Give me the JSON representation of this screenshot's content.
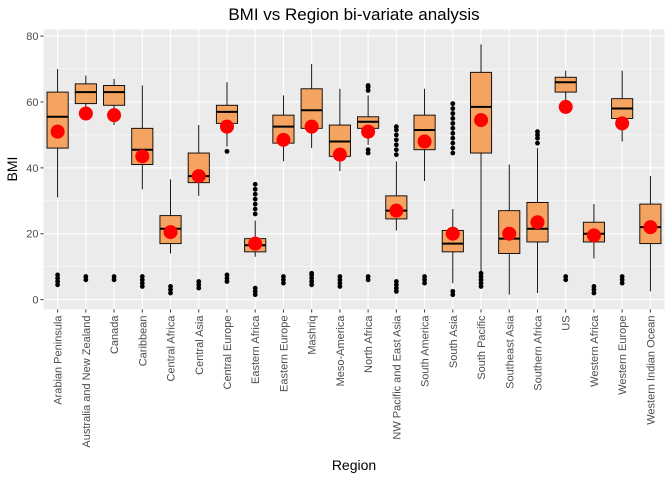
{
  "chart_data": {
    "type": "boxplot",
    "title": "BMI vs Region bi-variate analysis",
    "xlabel": "Region",
    "ylabel": "BMI",
    "ylim": [
      -3,
      82
    ],
    "yticks": [
      0,
      20,
      40,
      60,
      80
    ],
    "grid": true,
    "legend": "none",
    "box_fill": "#F4A460",
    "mean_color": "#FF0000",
    "panel_bg": "#EBEBEB",
    "grid_color": "#FFFFFF",
    "categories": [
      "Arabian Peninsula",
      "Australia and New Zealand",
      "Canada",
      "Caribbean",
      "Central Africa",
      "Central Asia",
      "Central Europe",
      "Eastern Africa",
      "Eastern Europe",
      "Mashriq",
      "Meso-America",
      "North Africa",
      "NW Pacific and East Asia",
      "South America",
      "South Asia",
      "South Pacific",
      "Southeast Asia",
      "Southern Africa",
      "US",
      "Western Africa",
      "Western Europe",
      "Western Indian Ocean"
    ],
    "boxes": [
      {
        "lw": 31,
        "q1": 46,
        "med": 55.5,
        "q3": 63,
        "uw": 70,
        "mean": 51,
        "outliers": [
          4.5,
          5.5,
          6.5,
          7.5
        ]
      },
      {
        "lw": 55,
        "q1": 59.5,
        "med": 63,
        "q3": 65.5,
        "uw": 68,
        "mean": 56.5,
        "outliers": [
          6,
          7
        ]
      },
      {
        "lw": 53,
        "q1": 59,
        "med": 63,
        "q3": 65,
        "uw": 67,
        "mean": 56,
        "outliers": [
          6,
          7
        ]
      },
      {
        "lw": 33.5,
        "q1": 41,
        "med": 45.5,
        "q3": 52,
        "uw": 65,
        "mean": 43.5,
        "outliers": [
          4,
          5,
          6,
          7
        ]
      },
      {
        "lw": 14,
        "q1": 17,
        "med": 21.5,
        "q3": 25.5,
        "uw": 36.5,
        "mean": 20.5,
        "outliers": [
          2,
          3,
          4
        ]
      },
      {
        "lw": 31.5,
        "q1": 35.5,
        "med": 37.5,
        "q3": 44.5,
        "uw": 53,
        "mean": 37.5,
        "outliers": [
          3.5,
          4.5,
          5.5
        ]
      },
      {
        "lw": 46.5,
        "q1": 53.5,
        "med": 57,
        "q3": 59,
        "uw": 66,
        "mean": 52.5,
        "outliers": [
          5.5,
          6.5,
          7.5,
          45
        ]
      },
      {
        "lw": 13,
        "q1": 14.5,
        "med": 16.5,
        "q3": 18.5,
        "uw": 24,
        "mean": 17,
        "outliers": [
          1.5,
          2.5,
          3.5,
          26,
          27.5,
          29,
          30.5,
          32,
          33.5,
          35
        ]
      },
      {
        "lw": 42,
        "q1": 47.5,
        "med": 52.5,
        "q3": 56,
        "uw": 62,
        "mean": 48.5,
        "outliers": [
          5,
          6,
          7
        ]
      },
      {
        "lw": 46,
        "q1": 52,
        "med": 57.5,
        "q3": 64,
        "uw": 71.5,
        "mean": 52.5,
        "outliers": [
          4.5,
          5.5,
          6.5,
          7.5,
          8
        ]
      },
      {
        "lw": 39,
        "q1": 43.5,
        "med": 48,
        "q3": 53,
        "uw": 64,
        "mean": 44,
        "outliers": [
          4,
          5,
          6,
          7
        ]
      },
      {
        "lw": 47,
        "q1": 52,
        "med": 54,
        "q3": 55.5,
        "uw": 62,
        "mean": 51,
        "outliers": [
          6,
          7,
          44.5,
          45.5,
          63.5,
          64.5,
          65
        ]
      },
      {
        "lw": 21,
        "q1": 24.5,
        "med": 27,
        "q3": 31.5,
        "uw": 42,
        "mean": 27,
        "outliers": [
          2.5,
          3.5,
          4.5,
          5.5,
          44,
          45.5,
          47,
          48.5,
          50,
          51.5,
          52.5
        ]
      },
      {
        "lw": 36,
        "q1": 45.5,
        "med": 51.5,
        "q3": 56,
        "uw": 64,
        "mean": 48,
        "outliers": [
          5,
          6,
          7
        ]
      },
      {
        "lw": 5,
        "q1": 14.5,
        "med": 17,
        "q3": 21,
        "uw": 27.5,
        "mean": 20,
        "outliers": [
          1.5,
          2.5,
          44.5,
          46,
          47.5,
          49,
          50.5,
          52,
          53.5,
          55,
          56.5,
          58,
          59.5
        ]
      },
      {
        "lw": 8.5,
        "q1": 44.5,
        "med": 58.5,
        "q3": 69,
        "uw": 77.5,
        "mean": 54.5,
        "outliers": [
          4,
          5,
          6,
          7,
          8
        ]
      },
      {
        "lw": 1.5,
        "q1": 14,
        "med": 18.5,
        "q3": 27,
        "uw": 41,
        "mean": 20,
        "outliers": []
      },
      {
        "lw": 2,
        "q1": 17.5,
        "med": 21.5,
        "q3": 29.5,
        "uw": 46,
        "mean": 23.5,
        "outliers": [
          47.5,
          49,
          50,
          51
        ]
      },
      {
        "lw": 58,
        "q1": 63,
        "med": 66,
        "q3": 67.5,
        "uw": 69.5,
        "mean": 58.5,
        "outliers": [
          6,
          7
        ]
      },
      {
        "lw": 12.5,
        "q1": 17.5,
        "med": 20,
        "q3": 23.5,
        "uw": 29,
        "mean": 19.5,
        "outliers": [
          2,
          3,
          4
        ]
      },
      {
        "lw": 48,
        "q1": 55,
        "med": 58,
        "q3": 61,
        "uw": 69.5,
        "mean": 53.5,
        "outliers": [
          5,
          6,
          7
        ]
      },
      {
        "lw": 2.5,
        "q1": 17,
        "med": 22,
        "q3": 29,
        "uw": 37.5,
        "mean": 22,
        "outliers": []
      }
    ]
  }
}
